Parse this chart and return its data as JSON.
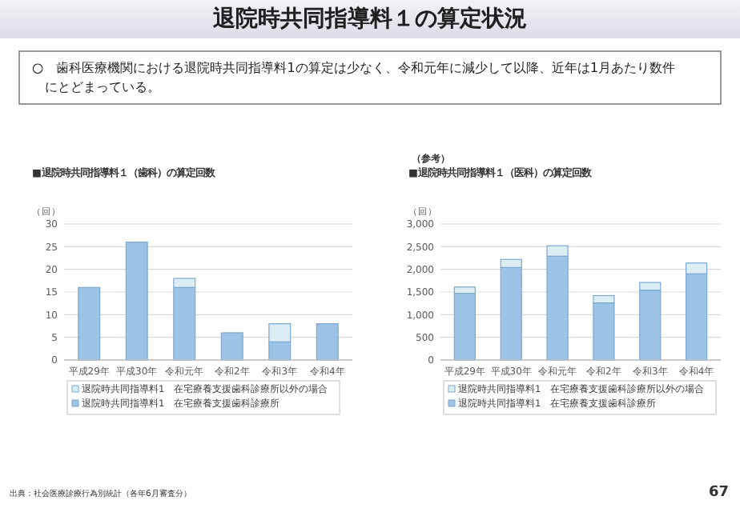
{
  "chart_data": [
    {
      "type": "bar",
      "stacked": true,
      "title": "■退院時共同指導料１（歯科）の算定回数",
      "ylabel": "（回）",
      "annotations": [
        "退院時共同指導料１の算定状況",
        "○　歯科医療機関における退院時共同指導料1の算定は少なく、令和元年に減少して以降、近年は1月あたり数件にとどまっている。"
      ],
      "categories": [
        "平成29年",
        "平成30年",
        "令和元年",
        "令和2年",
        "令和3年",
        "令和4年"
      ],
      "series": [
        {
          "name": "退院時共同指導料1　在宅療養支援歯科診療所",
          "color": "#9dc3e6",
          "values": [
            16,
            26,
            16,
            6,
            4,
            8
          ]
        },
        {
          "name": "退院時共同指導料1　在宅療養支援歯科診療所以外の場合",
          "color": "#dbeef4",
          "values": [
            null,
            null,
            2,
            null,
            4,
            null
          ]
        }
      ],
      "ylim": [
        0,
        30
      ],
      "yticks": [
        0,
        5,
        10,
        15,
        20,
        25,
        30
      ],
      "grid": "y",
      "legend": "bottom"
    },
    {
      "type": "bar",
      "stacked": true,
      "subtitle": "（参考）",
      "title": "■退院時共同指導料１（医科）の算定回数",
      "ylabel": "（回）",
      "annotations": [
        "出典：社会医療診療行為別統計（各年6月審査分）",
        "67"
      ],
      "categories": [
        "平成29年",
        "平成30年",
        "令和元年",
        "令和2年",
        "令和3年",
        "令和4年"
      ],
      "series": [
        {
          "name": "退院時共同指導料1　在宅療養支援歯科診療所",
          "color": "#9dc3e6",
          "values": [
            1470,
            2040,
            2290,
            1260,
            1540,
            1900
          ]
        },
        {
          "name": "退院時共同指導料1　在宅療養支援歯科診療所以外の場合",
          "color": "#dbeef4",
          "values": [
            140,
            180,
            230,
            160,
            170,
            240
          ]
        }
      ],
      "ylim": [
        0,
        3000
      ],
      "yticks": [
        {
          "value": 0,
          "label": "0"
        },
        {
          "value": 500,
          "label": "500"
        },
        {
          "value": 1000,
          "label": "1,000"
        },
        {
          "value": 1500,
          "label": "1,500"
        },
        {
          "value": 2000,
          "label": "2,000"
        },
        {
          "value": 2500,
          "label": "2,500"
        },
        {
          "value": 3000,
          "label": "3,000"
        }
      ],
      "grid": "y",
      "legend": "bottom"
    }
  ]
}
